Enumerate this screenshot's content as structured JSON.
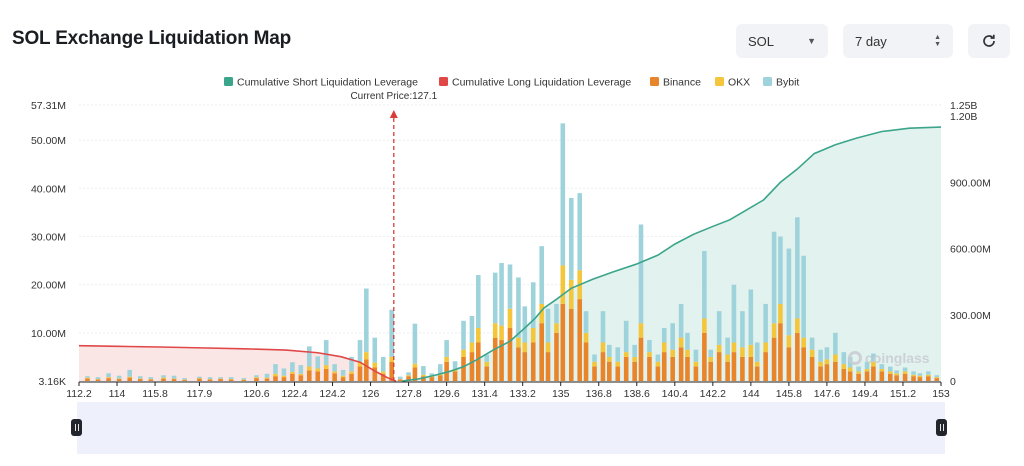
{
  "page": {
    "title": "SOL Exchange Liquidation Map",
    "coin_select": "SOL",
    "range_select": "7 day",
    "refresh_icon": "refresh-icon",
    "watermark": "coinglass"
  },
  "chart_data": {
    "type": "bar",
    "current_price_label": "Current Price:127.1",
    "current_price": 127.1,
    "legend": [
      {
        "name": "Cumulative Short Liquidation Leverage",
        "color": "#3aa58a",
        "kind": "line"
      },
      {
        "name": "Cumulative Long Liquidation Leverage",
        "color": "#e04848",
        "kind": "line"
      },
      {
        "name": "Binance",
        "color": "#e8842a",
        "kind": "bar"
      },
      {
        "name": "OKX",
        "color": "#f3c63c",
        "kind": "bar"
      },
      {
        "name": "Bybit",
        "color": "#9fd3dc",
        "kind": "bar"
      }
    ],
    "x_range": [
      112.2,
      153
    ],
    "x_ticks": [
      "112.2",
      "114",
      "115.8",
      "117.9",
      "120.6",
      "122.4",
      "124.2",
      "126",
      "127.8",
      "129.6",
      "131.4",
      "133.2",
      "135",
      "136.8",
      "138.6",
      "140.4",
      "142.2",
      "144",
      "145.8",
      "147.6",
      "149.4",
      "151.2",
      "153"
    ],
    "y_left_range": [
      0,
      57.31
    ],
    "y_left_ticks": [
      {
        "value": 0,
        "label": "3.16K"
      },
      {
        "value": 10,
        "label": "10.00M"
      },
      {
        "value": 20,
        "label": "20.00M"
      },
      {
        "value": 30,
        "label": "30.00M"
      },
      {
        "value": 40,
        "label": "40.00M"
      },
      {
        "value": 50,
        "label": "50.00M"
      },
      {
        "value": 57.31,
        "label": "57.31M"
      }
    ],
    "y_right_range": [
      0,
      1250
    ],
    "y_right_ticks": [
      {
        "value": 0,
        "label": "0"
      },
      {
        "value": 300,
        "label": "300.00M"
      },
      {
        "value": 600,
        "label": "600.00M"
      },
      {
        "value": 900,
        "label": "900.00M"
      },
      {
        "value": 1200,
        "label": "1.20B"
      },
      {
        "value": 1250,
        "label": "1.25B"
      }
    ],
    "bars": [
      [
        112.6,
        0.5,
        0.2,
        0.3
      ],
      [
        113.1,
        0.3,
        0.1,
        0.4
      ],
      [
        113.6,
        0.6,
        0.2,
        0.8
      ],
      [
        114.1,
        0.4,
        0.1,
        0.6
      ],
      [
        114.6,
        0.7,
        0.2,
        1.4
      ],
      [
        115.1,
        0.4,
        0.1,
        0.5
      ],
      [
        115.6,
        0.3,
        0.1,
        0.4
      ],
      [
        116.2,
        0.5,
        0.2,
        0.5
      ],
      [
        116.7,
        0.4,
        0.1,
        0.6
      ],
      [
        117.2,
        0.2,
        0.1,
        0.3
      ],
      [
        117.9,
        0.5,
        0.1,
        0.3
      ],
      [
        118.4,
        0.3,
        0.1,
        0.4
      ],
      [
        118.9,
        0.4,
        0.1,
        0.3
      ],
      [
        119.4,
        0.3,
        0.1,
        0.4
      ],
      [
        120.0,
        0.2,
        0.1,
        0.3
      ],
      [
        120.6,
        0.6,
        0.2,
        0.4
      ],
      [
        121.1,
        0.5,
        0.2,
        0.8
      ],
      [
        121.5,
        1.0,
        0.5,
        2.0
      ],
      [
        121.9,
        0.8,
        0.3,
        1.5
      ],
      [
        122.3,
        1.5,
        0.4,
        2.0
      ],
      [
        122.7,
        1.2,
        0.3,
        1.8
      ],
      [
        123.1,
        2.2,
        0.8,
        4.2
      ],
      [
        123.5,
        2.0,
        0.6,
        2.5
      ],
      [
        123.9,
        2.5,
        0.8,
        5.2
      ],
      [
        124.3,
        1.6,
        0.4,
        1.5
      ],
      [
        124.7,
        0.8,
        0.3,
        1.2
      ],
      [
        125.1,
        1.5,
        0.5,
        3.0
      ],
      [
        125.5,
        3.0,
        1.0,
        4.5
      ],
      [
        125.8,
        4.5,
        1.5,
        13.2
      ],
      [
        126.2,
        2.8,
        1.0,
        5.2
      ],
      [
        126.6,
        1.5,
        0.5,
        3.0
      ],
      [
        127.0,
        4.0,
        1.0,
        9.8
      ],
      [
        127.4,
        0.3,
        0.1,
        0.5
      ],
      [
        127.8,
        1.0,
        0.2,
        0.6
      ],
      [
        128.1,
        2.8,
        0.8,
        8.3
      ],
      [
        128.5,
        1.0,
        0.3,
        1.8
      ],
      [
        128.9,
        0.8,
        0.2,
        0.6
      ],
      [
        129.3,
        1.2,
        0.4,
        1.9
      ],
      [
        129.6,
        4.0,
        1.0,
        3.5
      ],
      [
        130.0,
        2.0,
        0.5,
        1.6
      ],
      [
        130.4,
        5.0,
        1.5,
        6.0
      ],
      [
        130.8,
        6.0,
        2.0,
        5.5
      ],
      [
        131.1,
        8.0,
        3.0,
        11.0
      ],
      [
        131.5,
        3.0,
        1.0,
        1.5
      ],
      [
        131.9,
        9.0,
        3.0,
        10.5
      ],
      [
        132.2,
        8.5,
        3.0,
        13.0
      ],
      [
        132.6,
        11.0,
        4.0,
        9.2
      ],
      [
        133.0,
        7.0,
        2.0,
        12.5
      ],
      [
        133.3,
        6.0,
        2.0,
        7.5
      ],
      [
        133.7,
        8.0,
        3.0,
        9.5
      ],
      [
        134.1,
        12.0,
        4.0,
        12.0
      ],
      [
        134.4,
        6.0,
        2.0,
        7.0
      ],
      [
        134.8,
        10.0,
        2.0,
        4.0
      ],
      [
        135.1,
        16.0,
        8.0,
        29.5
      ],
      [
        135.5,
        15.0,
        6.0,
        17.0
      ],
      [
        135.9,
        17.0,
        6.0,
        16.0
      ],
      [
        136.2,
        8.0,
        2.0,
        4.5
      ],
      [
        136.6,
        3.0,
        1.0,
        1.5
      ],
      [
        137.0,
        6.0,
        2.0,
        6.5
      ],
      [
        137.3,
        4.0,
        1.0,
        2.5
      ],
      [
        137.7,
        3.0,
        1.0,
        3.0
      ],
      [
        138.1,
        5.0,
        1.0,
        6.5
      ],
      [
        138.5,
        4.0,
        1.0,
        2.5
      ],
      [
        138.8,
        9.0,
        3.0,
        20.5
      ],
      [
        139.2,
        5.0,
        1.0,
        2.5
      ],
      [
        139.6,
        3.0,
        1.0,
        1.5
      ],
      [
        139.9,
        6.0,
        2.0,
        3.0
      ],
      [
        140.3,
        5.0,
        1.5,
        5.5
      ],
      [
        140.7,
        7.0,
        2.0,
        7.0
      ],
      [
        141.0,
        5.0,
        1.5,
        3.5
      ],
      [
        141.4,
        3.0,
        1.0,
        2.5
      ],
      [
        141.8,
        10.0,
        3.0,
        14.0
      ],
      [
        142.1,
        4.0,
        1.0,
        1.5
      ],
      [
        142.5,
        6.0,
        1.5,
        7.0
      ],
      [
        142.9,
        4.0,
        1.5,
        3.5
      ],
      [
        143.2,
        6.0,
        2.0,
        12.0
      ],
      [
        143.6,
        5.0,
        2.0,
        7.5
      ],
      [
        144.0,
        5.0,
        2.5,
        11.5
      ],
      [
        144.3,
        3.0,
        1.0,
        4.0
      ],
      [
        144.7,
        6.0,
        2.0,
        8.0
      ],
      [
        145.1,
        9.0,
        3.0,
        19.0
      ],
      [
        145.4,
        12.0,
        4.0,
        14.0
      ],
      [
        145.8,
        7.0,
        2.5,
        18.0
      ],
      [
        146.2,
        10.0,
        3.0,
        21.0
      ],
      [
        146.5,
        7.0,
        2.0,
        17.0
      ],
      [
        146.9,
        5.0,
        1.5,
        2.5
      ],
      [
        147.3,
        3.0,
        1.0,
        2.5
      ],
      [
        147.6,
        3.5,
        1.0,
        2.5
      ],
      [
        148.0,
        4.0,
        1.5,
        4.5
      ],
      [
        148.4,
        2.5,
        1.0,
        2.5
      ],
      [
        148.7,
        2.0,
        0.8,
        2.2
      ],
      [
        149.1,
        1.5,
        0.5,
        1.0
      ],
      [
        149.5,
        2.0,
        0.5,
        1.5
      ],
      [
        149.8,
        3.0,
        1.0,
        1.7
      ],
      [
        150.2,
        2.0,
        0.5,
        1.0
      ],
      [
        150.6,
        1.5,
        0.5,
        1.0
      ],
      [
        150.9,
        1.2,
        0.4,
        0.6
      ],
      [
        151.3,
        1.5,
        0.5,
        0.8
      ],
      [
        151.7,
        1.0,
        0.3,
        0.7
      ],
      [
        152.0,
        0.8,
        0.3,
        0.5
      ],
      [
        152.4,
        1.0,
        0.3,
        0.7
      ],
      [
        152.8,
        0.6,
        0.2,
        0.4
      ]
    ],
    "long_cumulative": [
      [
        112.2,
        160
      ],
      [
        114,
        157
      ],
      [
        116,
        154
      ],
      [
        118,
        150
      ],
      [
        120,
        146
      ],
      [
        122,
        140
      ],
      [
        123.5,
        128
      ],
      [
        124.6,
        110
      ],
      [
        125.5,
        85
      ],
      [
        126.2,
        45
      ],
      [
        126.8,
        15
      ],
      [
        127.2,
        0
      ]
    ],
    "short_cumulative": [
      [
        127.5,
        0
      ],
      [
        128.3,
        10
      ],
      [
        129.0,
        25
      ],
      [
        129.8,
        45
      ],
      [
        130.4,
        65
      ],
      [
        131.0,
        95
      ],
      [
        131.8,
        140
      ],
      [
        132.6,
        180
      ],
      [
        133.3,
        240
      ],
      [
        133.8,
        285
      ],
      [
        134.2,
        330
      ],
      [
        134.8,
        370
      ],
      [
        135.5,
        420
      ],
      [
        136.5,
        460
      ],
      [
        137.5,
        495
      ],
      [
        138.6,
        530
      ],
      [
        139.6,
        570
      ],
      [
        140.4,
        620
      ],
      [
        141.3,
        665
      ],
      [
        142.2,
        700
      ],
      [
        143.0,
        730
      ],
      [
        143.8,
        775
      ],
      [
        144.6,
        820
      ],
      [
        145.4,
        900
      ],
      [
        146.2,
        960
      ],
      [
        147.0,
        1030
      ],
      [
        148.0,
        1070
      ],
      [
        149.0,
        1100
      ],
      [
        150.2,
        1130
      ],
      [
        151.5,
        1145
      ],
      [
        153,
        1150
      ]
    ]
  }
}
